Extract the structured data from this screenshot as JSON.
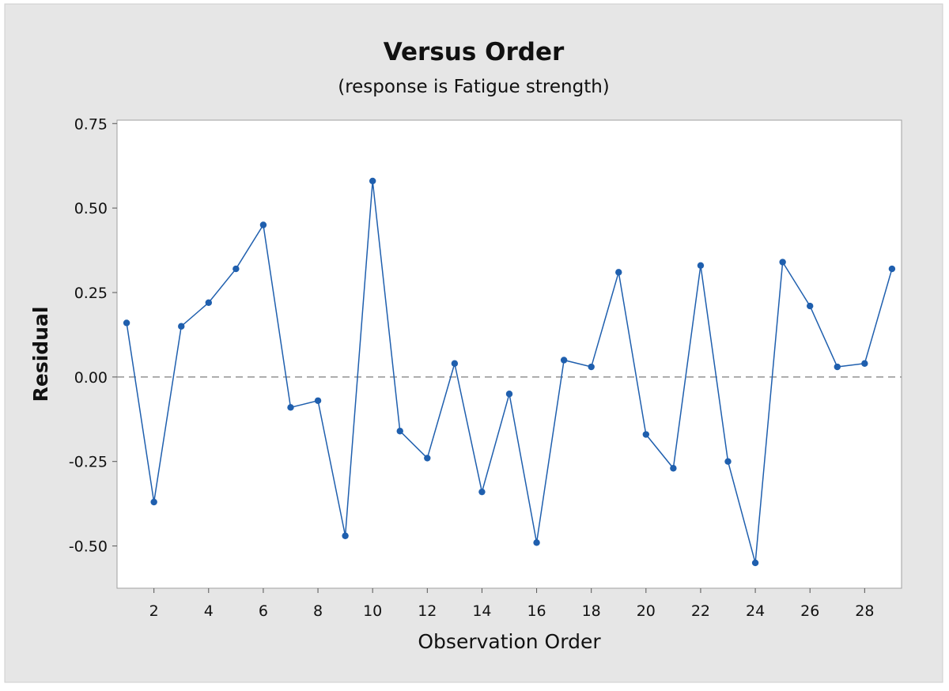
{
  "chart_data": {
    "type": "line",
    "title": "Versus Order",
    "subtitle": "(response is Fatigue strength)",
    "xlabel": "Observation Order",
    "ylabel": "Residual",
    "xlim": [
      0.65,
      29.35
    ],
    "ylim": [
      -0.625,
      0.76
    ],
    "xticks": [
      2,
      4,
      6,
      8,
      10,
      12,
      14,
      16,
      18,
      20,
      22,
      24,
      26,
      28
    ],
    "yticks": [
      0.75,
      0.5,
      0.25,
      0.0,
      -0.25,
      -0.5
    ],
    "ytick_labels": [
      "0.75",
      "0.50",
      "0.25",
      "0.00",
      "-0.25",
      "-0.50"
    ],
    "reference_line": {
      "y": 0.0,
      "style": "dashed"
    },
    "grid": false,
    "series": [
      {
        "x": [
          1,
          2,
          3,
          4,
          5,
          6,
          7,
          8,
          9,
          10,
          11,
          12,
          13,
          14,
          15,
          16,
          17,
          18,
          19,
          20,
          21,
          22,
          23,
          24,
          25,
          26,
          27,
          28,
          29
        ],
        "values": [
          0.16,
          -0.37,
          0.15,
          0.22,
          0.32,
          0.45,
          -0.09,
          -0.07,
          -0.47,
          0.58,
          -0.16,
          -0.24,
          0.04,
          -0.34,
          -0.05,
          -0.49,
          0.05,
          0.03,
          0.31,
          -0.17,
          -0.27,
          0.33,
          -0.25,
          -0.55,
          0.34,
          0.21,
          0.03,
          0.04,
          0.32
        ]
      }
    ],
    "colors": {
      "outer_background": "#e6e6e6",
      "plot_background": "#ffffff",
      "series": "#1f5fae",
      "reference": "#9a9a9a",
      "frame": "#a0a0a0"
    }
  }
}
